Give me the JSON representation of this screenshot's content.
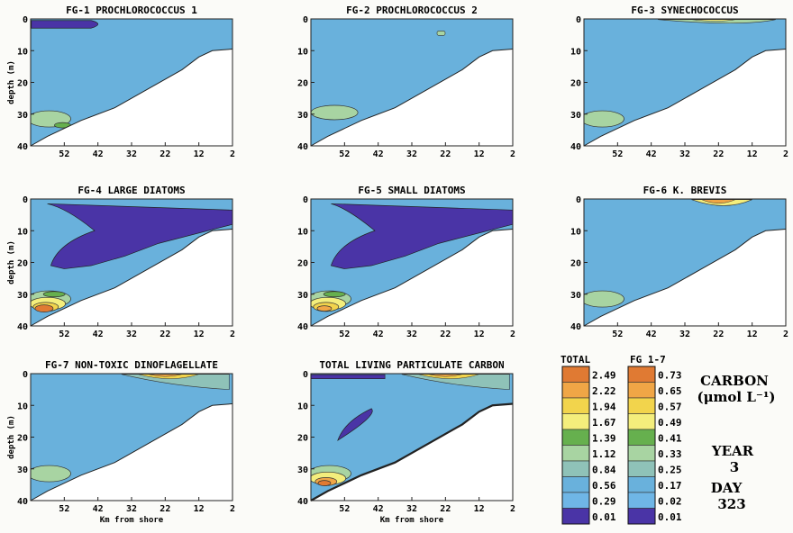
{
  "chart_data": {
    "type": "heatmap",
    "panels": [
      {
        "title": "FG-1 PROCHLOROCOCCUS 1",
        "xlabel": "",
        "ylabel": "depth (m)"
      },
      {
        "title": "FG-2 PROCHLOROCOCCUS 2",
        "xlabel": "",
        "ylabel": ""
      },
      {
        "title": "FG-3 SYNECHOCOCCUS",
        "xlabel": "",
        "ylabel": ""
      },
      {
        "title": "FG-4 LARGE DIATOMS",
        "xlabel": "",
        "ylabel": "depth (m)"
      },
      {
        "title": "FG-5 SMALL DIATOMS",
        "xlabel": "",
        "ylabel": ""
      },
      {
        "title": "FG-6 K. BREVIS",
        "xlabel": "",
        "ylabel": ""
      },
      {
        "title": "FG-7 NON-TOXIC DINOFLAGELLATE",
        "xlabel": "Km from shore",
        "ylabel": "depth (m)"
      },
      {
        "title": "TOTAL LIVING PARTICULATE CARBON",
        "xlabel": "Km from shore",
        "ylabel": ""
      }
    ],
    "x_ticks": [
      52,
      42,
      32,
      22,
      12,
      2
    ],
    "y_ticks": [
      0,
      10,
      20,
      30,
      40
    ],
    "xlim": [
      62,
      2
    ],
    "ylim": [
      0,
      40
    ],
    "legend": {
      "total_header": "TOTAL",
      "fg_header": "FG 1-7",
      "total_levels": [
        "2.49",
        "2.22",
        "1.94",
        "1.67",
        "1.39",
        "1.12",
        "0.84",
        "0.56",
        "0.29",
        "0.01"
      ],
      "fg_levels": [
        "0.73",
        "0.65",
        "0.57",
        "0.49",
        "0.41",
        "0.33",
        "0.25",
        "0.17",
        "0.02",
        "0.01"
      ],
      "colors": [
        "#e07a33",
        "#f0a646",
        "#f2d44c",
        "#f4ee7c",
        "#66b04e",
        "#a8d4a2",
        "#8fc2b8",
        "#69b1dc",
        "#6fb6e6",
        "#4a34a6"
      ],
      "unit_title": "CARBON",
      "unit": "(μmol L⁻¹)",
      "year_label": "YEAR",
      "year": "3",
      "day_label": "DAY",
      "day": "323"
    }
  }
}
